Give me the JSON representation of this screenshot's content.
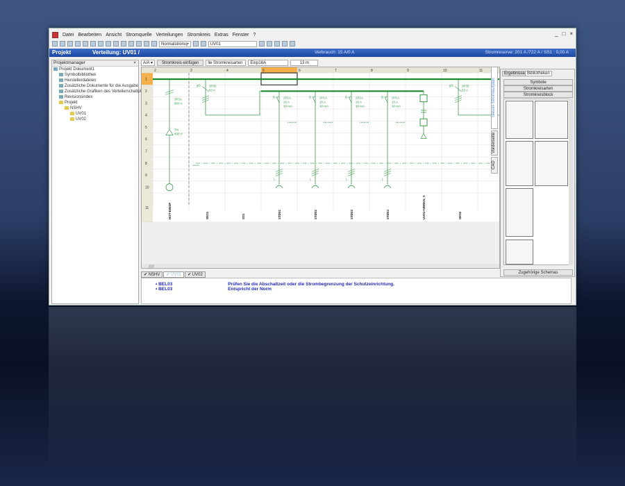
{
  "menu": [
    "Datei",
    "Bearbeiten",
    "Ansicht",
    "Stromquelle",
    "Verteilungen",
    "Stromkreis",
    "Extras",
    "Fenster",
    "?"
  ],
  "toolbar": {
    "current_type": "Normalstromq•",
    "distribution": "UV01"
  },
  "window_controls": [
    "_",
    "□",
    "×"
  ],
  "title": {
    "left": "Projekt",
    "main": "Verteilung: UV01 /",
    "consumption": "Verbrauch: 15 A/0 A",
    "reserve": "Stromreserve: 201 A /722 A   / SS1 : 0,00 A"
  },
  "project_manager": {
    "title": "Projektmanager",
    "close": "×",
    "items": [
      {
        "label": "Projekt Dokument1",
        "level": 0
      },
      {
        "label": "Symbolbibliothek",
        "level": 1
      },
      {
        "label": "Herstellerdateien",
        "level": 1
      },
      {
        "label": "Zusätzliche Dokumente für die Ausgabe",
        "level": 1
      },
      {
        "label": "Zusätzliche Grafiken des Verteilerschaltplan",
        "level": 1
      },
      {
        "label": "Revisionsindex",
        "level": 1
      },
      {
        "label": "Projekt",
        "level": 1
      },
      {
        "label": "NSHV",
        "level": 2
      },
      {
        "label": "UV01",
        "level": 3
      },
      {
        "label": "UV02",
        "level": 3
      }
    ]
  },
  "controls": {
    "view": "A/A ▾",
    "insert_circuit": "Stromkreis einfügen",
    "filter": "lle Stromkreisarten",
    "circuit_type": "Einp16A",
    "length": "13 m"
  },
  "grid": {
    "columns": [
      "2",
      "3",
      "4",
      "5",
      "6",
      "7",
      "8",
      "9",
      "10",
      "11"
    ],
    "rows": [
      "1",
      "2",
      "3",
      "4",
      "5",
      "6",
      "7",
      "8",
      "9",
      "10",
      "11"
    ],
    "selected_column": "5"
  },
  "circuits": {
    "source": {
      "breaker": "3P3A",
      "rating": "800 A",
      "net": "TN",
      "voltage": "400 V"
    },
    "sk01": {
      "prefix": "gG",
      "breaker": "3P35",
      "rating": "63 A"
    },
    "sk02": {
      "prefix": "gG",
      "breaker": "3P35",
      "rating": "63 A"
    },
    "std": [
      {
        "pre": "B",
        "breaker": "2P1A",
        "rating": "16 A",
        "rcd": "30 mA",
        "load": "L"
      },
      {
        "pre": "B",
        "breaker": "2P1A",
        "rating": "16 A",
        "rcd": "30 mA",
        "load": "L"
      },
      {
        "pre": "B",
        "breaker": "2P1A",
        "rating": "16 A",
        "rcd": "30 mA",
        "load": "L"
      },
      {
        "pre": "B",
        "breaker": "2P1A",
        "rating": "16 A",
        "rcd": "30 mA",
        "load": "L"
      }
    ],
    "names": [
      "NOT-EINSP",
      "SK01",
      "SS1",
      "STD01",
      "STD02",
      "STD03",
      "STD04",
      "UV01+VERKN_0",
      "SK02"
    ]
  },
  "distribution_tabs": [
    "NSHV",
    "UV01",
    "UV02"
  ],
  "messages": [
    {
      "code": "BEL03",
      "text": "Prüfen Sie die Abschaltzeit oder die Strombegrenzung der Schutzeinrichtung."
    },
    {
      "code": "BEL03",
      "text": "Entspricht der Norm"
    }
  ],
  "side_tabs": [
    "Steuer-Stromlaufplan",
    "Vorderseite",
    "CAD"
  ],
  "library": {
    "tabs": [
      "Ergebnisse",
      "Bibliotheken"
    ],
    "buttons": [
      "Symbole",
      "Stromkreisarten",
      "Stromkreisblock"
    ],
    "footer": "Zugehörige Schemas"
  },
  "colors": {
    "title_bar": "#1d47a0",
    "schematic": "#3a9a4a",
    "bus": "#1a8a2a",
    "selected_column": "#f5b04a"
  }
}
